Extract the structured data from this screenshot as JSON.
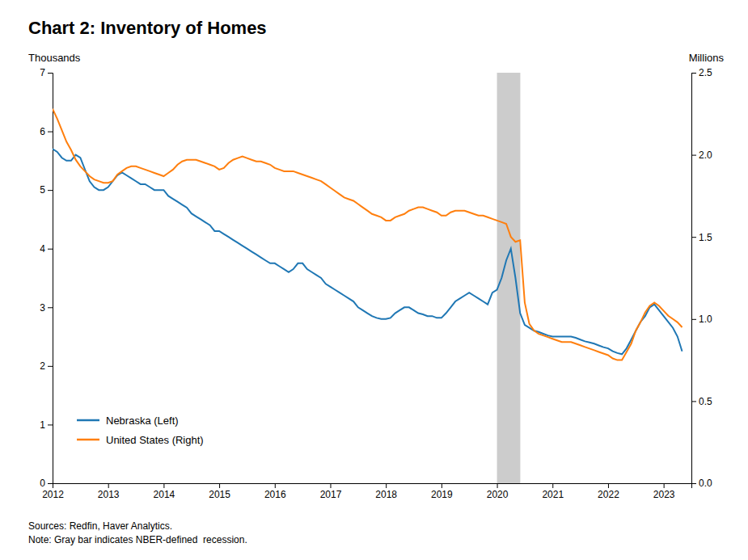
{
  "chart_data": {
    "type": "line",
    "title": "Chart 2: Inventory of Homes",
    "y_label": "Thousands",
    "y2_label": "Millions",
    "annotations": [
      "Sources: Redfin, Haver Analytics.",
      "Note: Gray bar indicates NBER-defined  recession."
    ],
    "recession": {
      "start": 2020.0,
      "end": 2020.42,
      "color": "#CCCCCC"
    },
    "xlim": [
      2012,
      2023.5
    ],
    "xticks": [
      2012,
      2013,
      2014,
      2015,
      2016,
      2017,
      2018,
      2019,
      2020,
      2021,
      2022,
      2023
    ],
    "ylim": [
      0,
      7
    ],
    "yticks": [
      0,
      1,
      2,
      3,
      4,
      5,
      6,
      7
    ],
    "y2lim": [
      0,
      2.5
    ],
    "y2ticks": [
      {
        "value": 0.0,
        "label": "0.0"
      },
      0.5,
      {
        "value": 1.0,
        "label": "1.0"
      },
      1.5,
      {
        "value": 2.0,
        "label": "2.0"
      },
      2.5
    ],
    "legend": "lower left",
    "x": [
      2012.0,
      2012.083,
      2012.167,
      2012.25,
      2012.333,
      2012.417,
      2012.5,
      2012.583,
      2012.667,
      2012.75,
      2012.833,
      2012.917,
      2013.0,
      2013.083,
      2013.167,
      2013.25,
      2013.333,
      2013.417,
      2013.5,
      2013.583,
      2013.667,
      2013.75,
      2013.833,
      2013.917,
      2014.0,
      2014.083,
      2014.167,
      2014.25,
      2014.333,
      2014.417,
      2014.5,
      2014.583,
      2014.667,
      2014.75,
      2014.833,
      2014.917,
      2015.0,
      2015.083,
      2015.167,
      2015.25,
      2015.333,
      2015.417,
      2015.5,
      2015.583,
      2015.667,
      2015.75,
      2015.833,
      2015.917,
      2016.0,
      2016.083,
      2016.167,
      2016.25,
      2016.333,
      2016.417,
      2016.5,
      2016.583,
      2016.667,
      2016.75,
      2016.833,
      2016.917,
      2017.0,
      2017.083,
      2017.167,
      2017.25,
      2017.333,
      2017.417,
      2017.5,
      2017.583,
      2017.667,
      2017.75,
      2017.833,
      2017.917,
      2018.0,
      2018.083,
      2018.167,
      2018.25,
      2018.333,
      2018.417,
      2018.5,
      2018.583,
      2018.667,
      2018.75,
      2018.833,
      2018.917,
      2019.0,
      2019.083,
      2019.167,
      2019.25,
      2019.333,
      2019.417,
      2019.5,
      2019.583,
      2019.667,
      2019.75,
      2019.833,
      2019.917,
      2020.0,
      2020.083,
      2020.167,
      2020.25,
      2020.333,
      2020.417,
      2020.5,
      2020.583,
      2020.667,
      2020.75,
      2020.833,
      2020.917,
      2021.0,
      2021.083,
      2021.167,
      2021.25,
      2021.333,
      2021.417,
      2021.5,
      2021.583,
      2021.667,
      2021.75,
      2021.833,
      2021.917,
      2022.0,
      2022.083,
      2022.167,
      2022.25,
      2022.333,
      2022.417,
      2022.5,
      2022.583,
      2022.667,
      2022.75,
      2022.833,
      2022.917,
      2023.0,
      2023.083,
      2023.167,
      2023.25,
      2023.333
    ],
    "series": [
      {
        "name": "Nebraska (Left)",
        "values": [
          5.7,
          5.65,
          5.55,
          5.5,
          5.5,
          5.6,
          5.55,
          5.35,
          5.15,
          5.05,
          5.0,
          5.0,
          5.05,
          5.15,
          5.25,
          5.3,
          5.25,
          5.2,
          5.15,
          5.1,
          5.1,
          5.05,
          5.0,
          5.0,
          5.0,
          4.9,
          4.85,
          4.8,
          4.75,
          4.7,
          4.6,
          4.55,
          4.5,
          4.45,
          4.4,
          4.3,
          4.3,
          4.25,
          4.2,
          4.15,
          4.1,
          4.05,
          4.0,
          3.95,
          3.9,
          3.85,
          3.8,
          3.75,
          3.75,
          3.7,
          3.65,
          3.6,
          3.65,
          3.75,
          3.75,
          3.65,
          3.6,
          3.55,
          3.5,
          3.4,
          3.35,
          3.3,
          3.25,
          3.2,
          3.15,
          3.1,
          3.0,
          2.95,
          2.9,
          2.85,
          2.82,
          2.8,
          2.8,
          2.82,
          2.9,
          2.95,
          3.0,
          3.0,
          2.95,
          2.9,
          2.88,
          2.85,
          2.85,
          2.82,
          2.82,
          2.9,
          3.0,
          3.1,
          3.15,
          3.2,
          3.25,
          3.2,
          3.15,
          3.1,
          3.05,
          3.25,
          3.3,
          3.5,
          3.8,
          4.0,
          3.5,
          2.9,
          2.7,
          2.65,
          2.6,
          2.58,
          2.55,
          2.52,
          2.5,
          2.5,
          2.5,
          2.5,
          2.5,
          2.48,
          2.45,
          2.42,
          2.4,
          2.38,
          2.35,
          2.32,
          2.3,
          2.25,
          2.22,
          2.2,
          2.3,
          2.45,
          2.6,
          2.75,
          2.85,
          3.0,
          3.05,
          2.95,
          2.85,
          2.75,
          2.65,
          2.5,
          2.25
        ]
      },
      {
        "name": "United States (Right)",
        "axis": "y2",
        "values": [
          2.28,
          2.22,
          2.15,
          2.08,
          2.03,
          1.97,
          1.93,
          1.9,
          1.87,
          1.85,
          1.84,
          1.83,
          1.83,
          1.84,
          1.88,
          1.9,
          1.92,
          1.93,
          1.93,
          1.92,
          1.91,
          1.9,
          1.89,
          1.88,
          1.87,
          1.89,
          1.91,
          1.94,
          1.96,
          1.97,
          1.97,
          1.97,
          1.96,
          1.95,
          1.94,
          1.93,
          1.91,
          1.92,
          1.95,
          1.97,
          1.98,
          1.99,
          1.98,
          1.97,
          1.96,
          1.96,
          1.95,
          1.94,
          1.92,
          1.91,
          1.9,
          1.9,
          1.9,
          1.89,
          1.88,
          1.87,
          1.86,
          1.85,
          1.84,
          1.82,
          1.8,
          1.78,
          1.76,
          1.74,
          1.73,
          1.72,
          1.7,
          1.68,
          1.66,
          1.64,
          1.63,
          1.62,
          1.6,
          1.6,
          1.62,
          1.63,
          1.64,
          1.66,
          1.67,
          1.68,
          1.68,
          1.67,
          1.66,
          1.65,
          1.63,
          1.63,
          1.65,
          1.66,
          1.66,
          1.66,
          1.65,
          1.64,
          1.63,
          1.63,
          1.62,
          1.61,
          1.6,
          1.59,
          1.58,
          1.5,
          1.47,
          1.48,
          1.1,
          0.97,
          0.93,
          0.91,
          0.9,
          0.89,
          0.88,
          0.87,
          0.86,
          0.86,
          0.86,
          0.85,
          0.84,
          0.83,
          0.82,
          0.81,
          0.8,
          0.79,
          0.78,
          0.76,
          0.75,
          0.75,
          0.8,
          0.85,
          0.93,
          0.98,
          1.04,
          1.08,
          1.1,
          1.08,
          1.05,
          1.02,
          1.0,
          0.98,
          0.95
        ]
      }
    ]
  }
}
